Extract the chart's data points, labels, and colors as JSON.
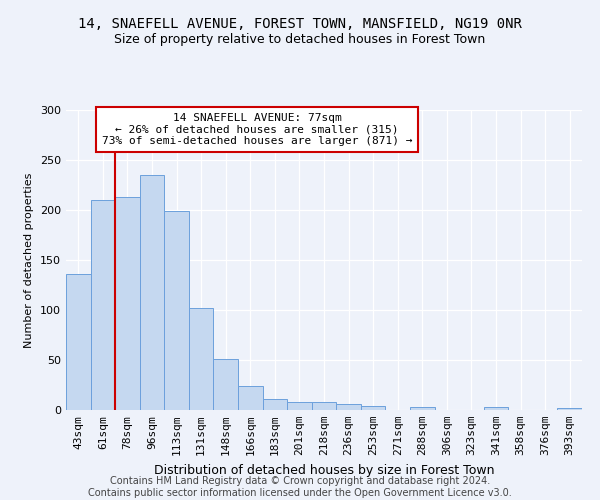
{
  "title": "14, SNAEFELL AVENUE, FOREST TOWN, MANSFIELD, NG19 0NR",
  "subtitle": "Size of property relative to detached houses in Forest Town",
  "xlabel": "Distribution of detached houses by size in Forest Town",
  "ylabel": "Number of detached properties",
  "categories": [
    "43sqm",
    "61sqm",
    "78sqm",
    "96sqm",
    "113sqm",
    "131sqm",
    "148sqm",
    "166sqm",
    "183sqm",
    "201sqm",
    "218sqm",
    "236sqm",
    "253sqm",
    "271sqm",
    "288sqm",
    "306sqm",
    "323sqm",
    "341sqm",
    "358sqm",
    "376sqm",
    "393sqm"
  ],
  "values": [
    136,
    210,
    213,
    235,
    199,
    102,
    51,
    24,
    11,
    8,
    8,
    6,
    4,
    0,
    3,
    0,
    0,
    3,
    0,
    0,
    2
  ],
  "bar_color": "#c5d8f0",
  "bar_edge_color": "#6ca0dc",
  "vline_x": 1.5,
  "vline_color": "#cc0000",
  "annotation_line1": "14 SNAEFELL AVENUE: 77sqm",
  "annotation_line2": "← 26% of detached houses are smaller (315)",
  "annotation_line3": "73% of semi-detached houses are larger (871) →",
  "annotation_box_color": "#ffffff",
  "annotation_box_edge": "#cc0000",
  "ylim": [
    0,
    300
  ],
  "yticks": [
    0,
    50,
    100,
    150,
    200,
    250,
    300
  ],
  "background_color": "#eef2fa",
  "footer": "Contains HM Land Registry data © Crown copyright and database right 2024.\nContains public sector information licensed under the Open Government Licence v3.0.",
  "title_fontsize": 10,
  "subtitle_fontsize": 9,
  "tick_fontsize": 8,
  "ylabel_fontsize": 8,
  "xlabel_fontsize": 9,
  "footer_fontsize": 7
}
